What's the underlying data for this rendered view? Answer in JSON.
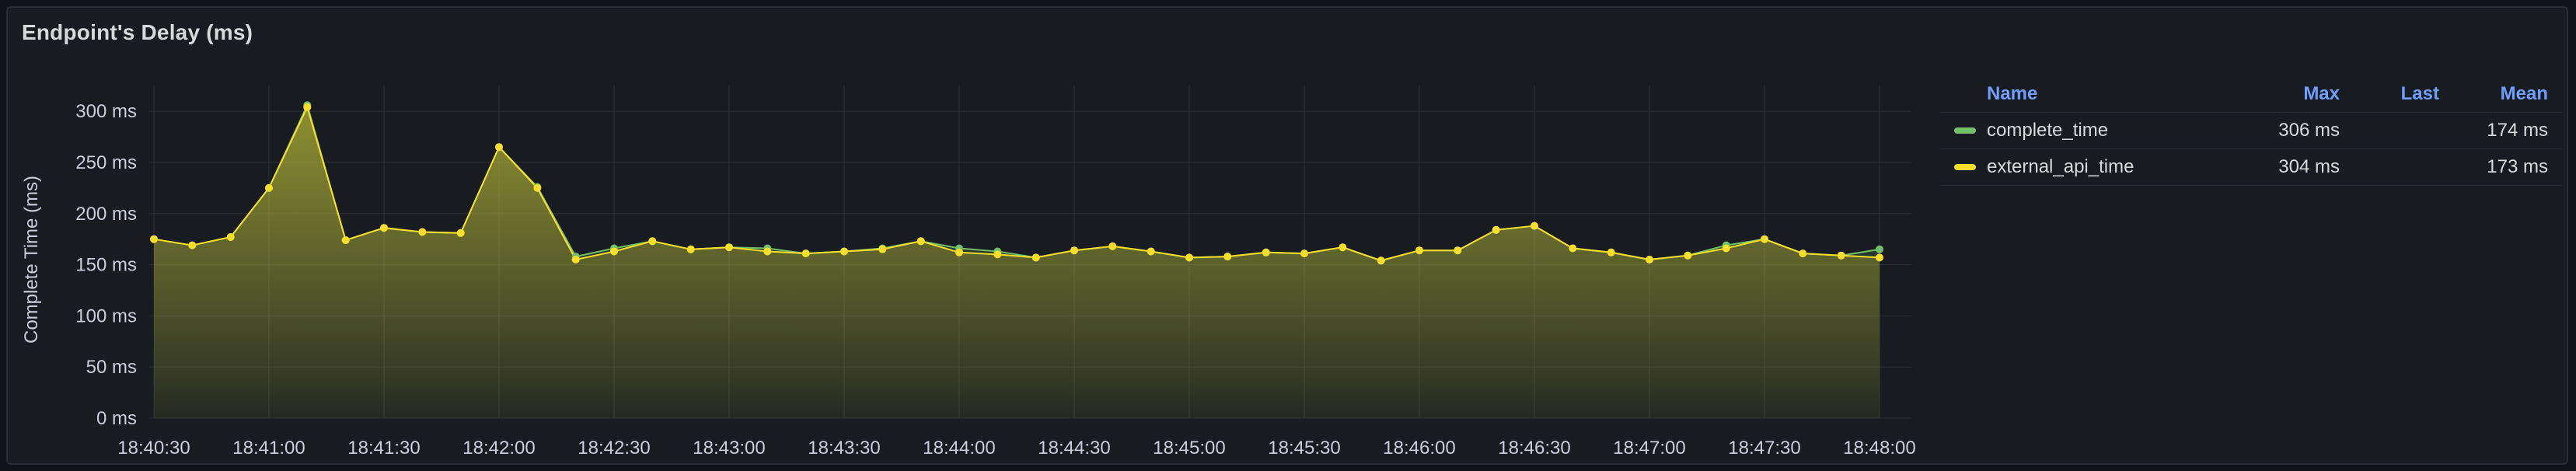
{
  "panel": {
    "title": "Endpoint's Delay (ms)"
  },
  "legend": {
    "headers": {
      "name": "Name",
      "max": "Max",
      "last": "Last",
      "mean": "Mean"
    },
    "rows": [
      {
        "name": "complete_time",
        "max": "306 ms",
        "last": "",
        "mean": "174 ms",
        "color": "#73bf69"
      },
      {
        "name": "external_api_time",
        "max": "304 ms",
        "last": "",
        "mean": "173 ms",
        "color": "#fade2a"
      }
    ]
  },
  "chart_data": {
    "type": "area",
    "title": "Endpoint's Delay (ms)",
    "ylabel": "Complete Time (ms)",
    "xlabel": "",
    "ylim": [
      0,
      300
    ],
    "y_ticks": [
      "0 ms",
      "50 ms",
      "100 ms",
      "150 ms",
      "200 ms",
      "250 ms",
      "300 ms"
    ],
    "x_ticks": [
      "18:40:30",
      "18:41:00",
      "18:41:30",
      "18:42:00",
      "18:42:30",
      "18:43:00",
      "18:43:30",
      "18:44:00",
      "18:44:30",
      "18:45:00",
      "18:45:30",
      "18:46:00",
      "18:46:30",
      "18:47:00",
      "18:47:30",
      "18:48:00"
    ],
    "x_range": [
      "18:40:30",
      "18:48:00"
    ],
    "sample_interval_s": 10,
    "grid": true,
    "legend_position": "right",
    "series": [
      {
        "name": "complete_time",
        "color": "#73bf69",
        "values": [
          175,
          169,
          177,
          225,
          306,
          174,
          186,
          182,
          181,
          265,
          226,
          158,
          166,
          173,
          165,
          167,
          166,
          161,
          163,
          166,
          173,
          166,
          163,
          157,
          164,
          168,
          163,
          157,
          158,
          162,
          161,
          167,
          154,
          164,
          164,
          184,
          188,
          166,
          162,
          155,
          159,
          169,
          175,
          161,
          159,
          165
        ]
      },
      {
        "name": "external_api_time",
        "color": "#fade2a",
        "values": [
          175,
          169,
          177,
          225,
          304,
          174,
          186,
          182,
          181,
          265,
          225,
          155,
          163,
          173,
          165,
          167,
          163,
          161,
          163,
          165,
          173,
          162,
          160,
          157,
          164,
          168,
          163,
          157,
          158,
          162,
          161,
          167,
          154,
          164,
          164,
          184,
          188,
          166,
          162,
          155,
          159,
          166,
          175,
          161,
          159,
          157
        ]
      }
    ]
  }
}
